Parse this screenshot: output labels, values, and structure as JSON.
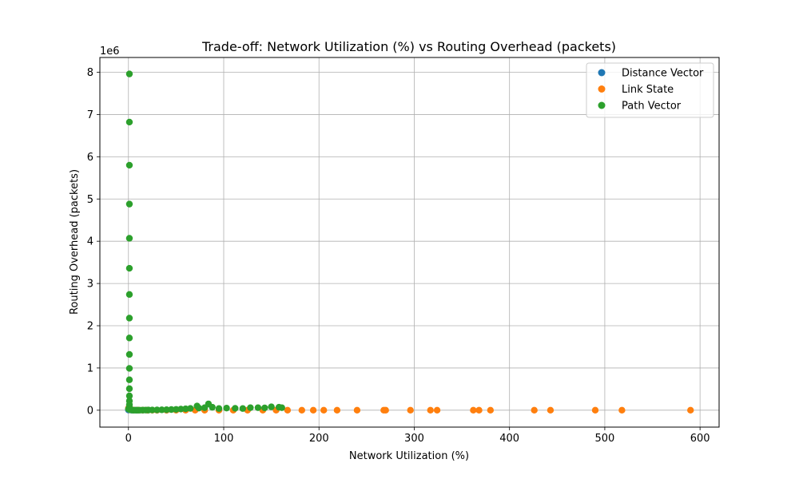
{
  "chart_data": {
    "type": "scatter",
    "title": "Trade-off: Network Utilization (%) vs Routing Overhead (packets)",
    "xlabel": "Network Utilization (%)",
    "ylabel": "Routing Overhead (packets)",
    "y_offset_label": "1e6",
    "y_scale_factor": 1000000,
    "xlim": [
      -30,
      620
    ],
    "ylim": [
      -400000,
      8350000
    ],
    "x_ticks": [
      0,
      100,
      200,
      300,
      400,
      500,
      600
    ],
    "y_ticks": [
      0,
      1000000,
      2000000,
      3000000,
      4000000,
      5000000,
      6000000,
      7000000,
      8000000
    ],
    "x_tick_labels": [
      "0",
      "100",
      "200",
      "300",
      "400",
      "500",
      "600"
    ],
    "y_tick_labels": [
      "0",
      "1",
      "2",
      "3",
      "4",
      "5",
      "6",
      "7",
      "8"
    ],
    "grid": true,
    "legend_position": "top-right",
    "series": [
      {
        "name": "Distance Vector",
        "color": "#1f77b4",
        "points": [
          [
            0,
            30000
          ],
          [
            0,
            5000
          ],
          [
            1,
            20000
          ],
          [
            2,
            10000
          ],
          [
            3,
            2000
          ],
          [
            5,
            1000
          ],
          [
            8,
            500
          ],
          [
            10,
            200
          ],
          [
            15,
            100
          ],
          [
            20,
            50
          ],
          [
            30,
            20
          ],
          [
            40,
            10
          ]
        ]
      },
      {
        "name": "Link State",
        "color": "#ff7f0e",
        "points": [
          [
            0,
            50000
          ],
          [
            1,
            20000
          ],
          [
            2,
            10000
          ],
          [
            5,
            5000
          ],
          [
            10,
            3000
          ],
          [
            15,
            2000
          ],
          [
            20,
            1500
          ],
          [
            25,
            1000
          ],
          [
            30,
            800
          ],
          [
            40,
            600
          ],
          [
            50,
            500
          ],
          [
            60,
            400
          ],
          [
            70,
            350
          ],
          [
            80,
            300
          ],
          [
            95,
            250
          ],
          [
            110,
            200
          ],
          [
            125,
            180
          ],
          [
            141,
            160
          ],
          [
            155,
            150
          ],
          [
            167,
            140
          ],
          [
            182,
            130
          ],
          [
            194,
            120
          ],
          [
            205,
            110
          ],
          [
            219,
            100
          ],
          [
            240,
            95
          ],
          [
            268,
            90
          ],
          [
            270,
            85
          ],
          [
            296,
            80
          ],
          [
            317,
            75
          ],
          [
            324,
            70
          ],
          [
            362,
            65
          ],
          [
            368,
            60
          ],
          [
            380,
            55
          ],
          [
            426,
            50
          ],
          [
            443,
            45
          ],
          [
            490,
            40
          ],
          [
            518,
            35
          ],
          [
            590,
            30
          ]
        ]
      },
      {
        "name": "Path Vector",
        "color": "#2ca02c",
        "points": [
          [
            1,
            7960000
          ],
          [
            1,
            6820000
          ],
          [
            1,
            5800000
          ],
          [
            1,
            4880000
          ],
          [
            1,
            4070000
          ],
          [
            1,
            3360000
          ],
          [
            1,
            2740000
          ],
          [
            1,
            2180000
          ],
          [
            1,
            1710000
          ],
          [
            1,
            1320000
          ],
          [
            1,
            990000
          ],
          [
            1,
            720000
          ],
          [
            1,
            510000
          ],
          [
            1,
            340000
          ],
          [
            1,
            220000
          ],
          [
            1,
            130000
          ],
          [
            1,
            70000
          ],
          [
            0,
            30000
          ],
          [
            2,
            10000
          ],
          [
            4,
            2000
          ],
          [
            6,
            1000
          ],
          [
            8,
            500
          ],
          [
            10,
            800
          ],
          [
            12,
            1200
          ],
          [
            15,
            2000
          ],
          [
            18,
            3000
          ],
          [
            21,
            4000
          ],
          [
            25,
            5000
          ],
          [
            30,
            7000
          ],
          [
            35,
            9000
          ],
          [
            40,
            12000
          ],
          [
            45,
            16000
          ],
          [
            50,
            20000
          ],
          [
            55,
            26000
          ],
          [
            60,
            33000
          ],
          [
            65,
            42000
          ],
          [
            72,
            100000
          ],
          [
            74,
            50000
          ],
          [
            80,
            60000
          ],
          [
            84,
            150000
          ],
          [
            88,
            70000
          ],
          [
            95,
            40000
          ],
          [
            103,
            50000
          ],
          [
            112,
            45000
          ],
          [
            120,
            40000
          ],
          [
            128,
            60000
          ],
          [
            136,
            60000
          ],
          [
            143,
            55000
          ],
          [
            150,
            80000
          ],
          [
            158,
            70000
          ],
          [
            161,
            60000
          ]
        ]
      }
    ]
  }
}
